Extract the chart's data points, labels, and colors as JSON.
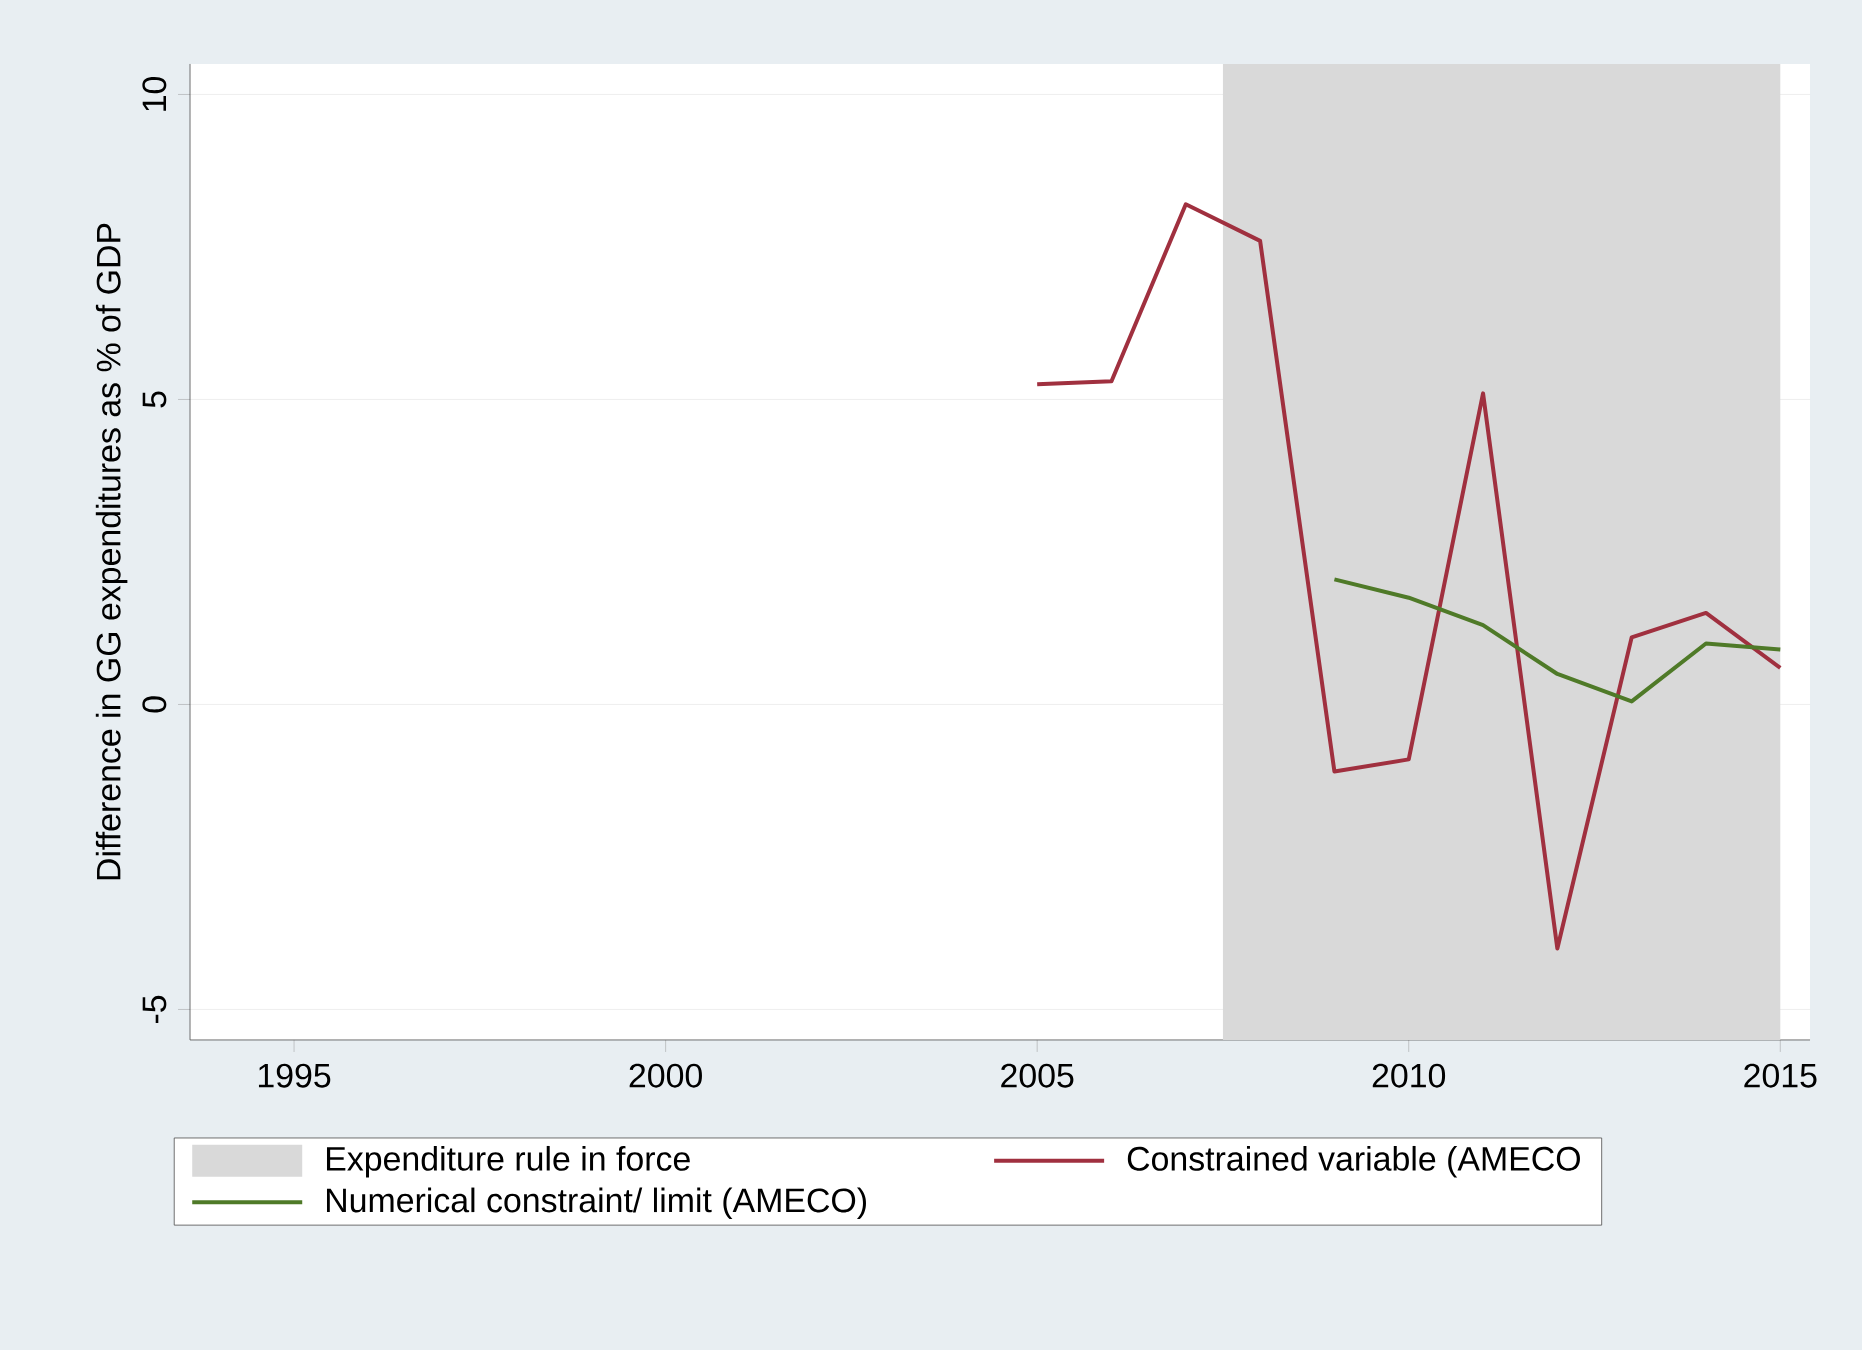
{
  "chart_data": {
    "type": "line",
    "ylabel": "Difference in GG expenditures as % of GDP",
    "x": [
      2005,
      2006,
      2007,
      2008,
      2009,
      2010,
      2011,
      2012,
      2013,
      2014,
      2015
    ],
    "series": [
      {
        "name": "Constrained variable (AMECO",
        "color": "#a0303f",
        "values": [
          5.25,
          5.3,
          8.2,
          7.6,
          -1.1,
          -0.9,
          5.1,
          -4.0,
          1.1,
          1.5,
          0.6
        ]
      },
      {
        "name": "Numerical constraint/ limit (AMECO)",
        "color": "#4f7a28",
        "x": [
          2009,
          2010,
          2011,
          2012,
          2013,
          2014,
          2015
        ],
        "values": [
          2.05,
          1.75,
          1.3,
          0.5,
          0.05,
          1.0,
          0.9
        ]
      }
    ],
    "bands": [
      {
        "axis": "x",
        "from": 2007.5,
        "to": 2015,
        "label": "Expenditure rule in force",
        "color": "#d9d9d9"
      }
    ],
    "xlim": [
      1993.6,
      2015.4
    ],
    "ylim": [
      -5.5,
      10.5
    ],
    "xticks": [
      1995,
      2000,
      2005,
      2010,
      2015
    ],
    "yticks": [
      -5,
      0,
      5,
      10
    ],
    "grid": "y",
    "legend": "bottom",
    "line_style": "solid",
    "marker": "none"
  }
}
